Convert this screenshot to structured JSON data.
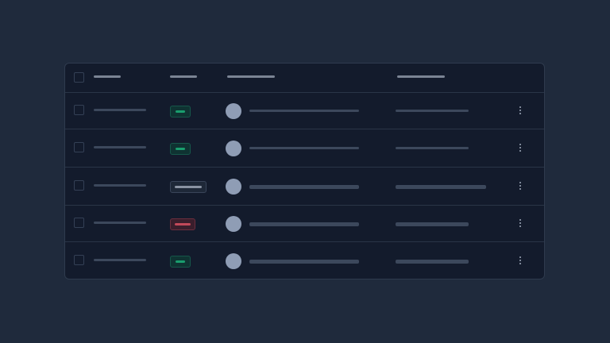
{
  "colors": {
    "background": "#1f2a3c",
    "card": "#131b2c",
    "success": "#1a9e6e",
    "neutral": "#8a93a3",
    "danger": "#c2495a",
    "avatar": "#8f9db5"
  },
  "rows": [
    {
      "status": "success"
    },
    {
      "status": "success"
    },
    {
      "status": "neutral"
    },
    {
      "status": "danger"
    },
    {
      "status": "success"
    }
  ]
}
